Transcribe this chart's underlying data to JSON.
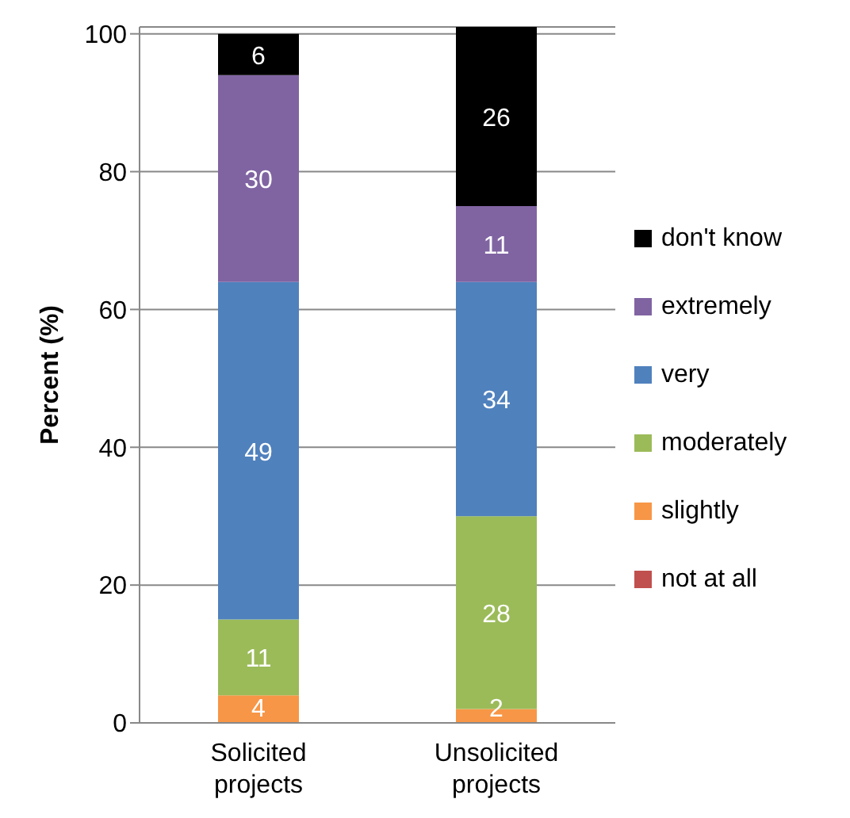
{
  "chart_data": {
    "type": "bar",
    "stacked": true,
    "ylabel": "Percent (%)",
    "categories": [
      "Solicited projects",
      "Unsolicited projects"
    ],
    "ylim": [
      0,
      101
    ],
    "yticks": [
      0,
      20,
      40,
      60,
      80,
      100
    ],
    "grid": "y",
    "legend": "right",
    "series": [
      {
        "name": "not at all",
        "color": "#c0504d",
        "values": [
          0,
          0
        ],
        "value_labels": [
          null,
          null
        ]
      },
      {
        "name": "slightly",
        "color": "#f79646",
        "values": [
          4,
          2
        ],
        "value_labels": [
          "4",
          "2"
        ]
      },
      {
        "name": "moderately",
        "color": "#9bbb59",
        "values": [
          11,
          28
        ],
        "value_labels": [
          "11",
          "28"
        ]
      },
      {
        "name": "very",
        "color": "#4f81bd",
        "values": [
          49,
          34
        ],
        "value_labels": [
          "49",
          "34"
        ]
      },
      {
        "name": "extremely",
        "color": "#8064a2",
        "values": [
          30,
          11
        ],
        "value_labels": [
          "30",
          "11"
        ]
      },
      {
        "name": "don't know",
        "color": "#000000",
        "values": [
          6,
          26
        ],
        "value_labels": [
          "6",
          "26"
        ]
      }
    ]
  }
}
